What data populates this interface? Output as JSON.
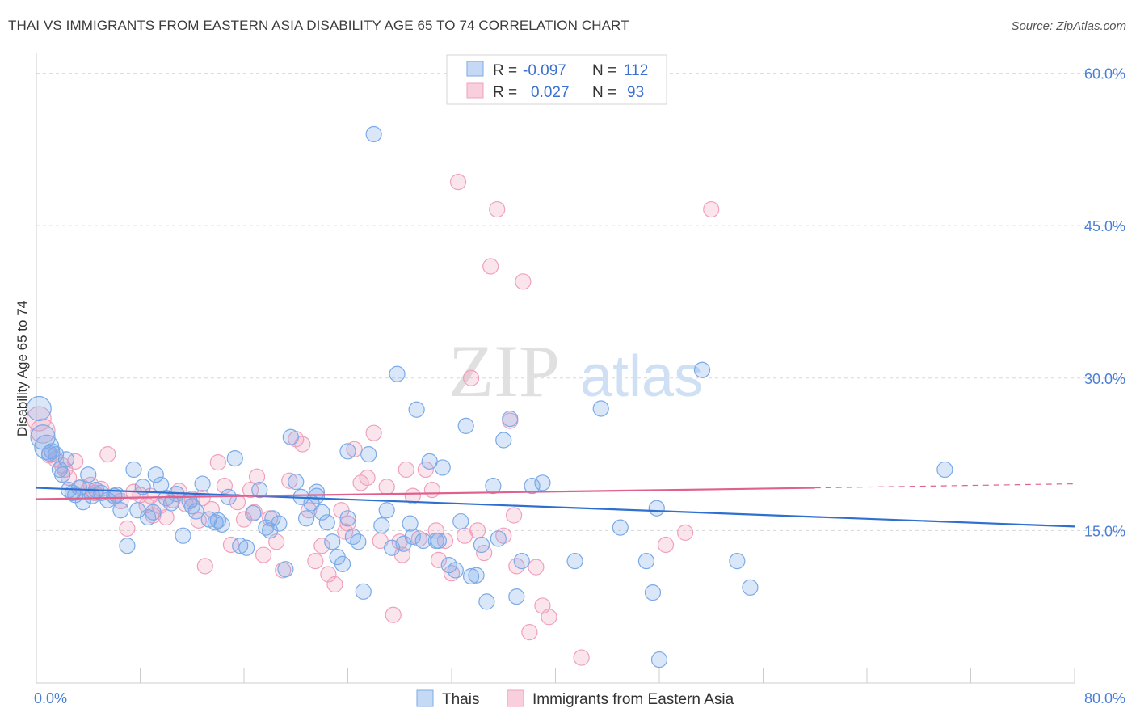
{
  "title": "THAI VS IMMIGRANTS FROM EASTERN ASIA DISABILITY AGE 65 TO 74 CORRELATION CHART",
  "source": "Source: ZipAtlas.com",
  "colors": {
    "thais": "#7aaae8",
    "thais_line": "#2f6fcf",
    "immigrants": "#f0a0bc",
    "immigrants_line": "#e0608e",
    "tick": "#4a7fd4",
    "grid": "#d8d8d8"
  },
  "chart_data": {
    "type": "scatter",
    "ylabel": "Disability Age 65 to 74",
    "xlim": [
      0,
      80
    ],
    "ylim": [
      0,
      61
    ],
    "x_tick_labels": [
      "0.0%",
      "80.0%"
    ],
    "y_ticks": [
      15,
      30,
      45,
      60
    ],
    "y_tick_labels": [
      "15.0%",
      "30.0%",
      "45.0%",
      "60.0%"
    ],
    "legend": {
      "rows": [
        {
          "r_label": "R =",
          "r_value": "-0.097",
          "n_label": "N =",
          "n_value": "112"
        },
        {
          "r_label": "R =",
          "r_value": "0.027",
          "n_label": "N =",
          "n_value": "93"
        }
      ]
    },
    "series": [
      {
        "name": "Thais",
        "trend": {
          "x": [
            0,
            80
          ],
          "y": [
            19.2,
            15.4
          ],
          "dashed_from": null
        },
        "points": [
          [
            0.2,
            27.0
          ],
          [
            0.5,
            24.2
          ],
          [
            0.8,
            23.2
          ],
          [
            1.2,
            22.8
          ],
          [
            1.5,
            22.5
          ],
          [
            1.8,
            21.0
          ],
          [
            2.0,
            20.5
          ],
          [
            2.3,
            22.0
          ],
          [
            2.5,
            19.0
          ],
          [
            3.0,
            18.5
          ],
          [
            3.3,
            19.2
          ],
          [
            3.6,
            17.8
          ],
          [
            4.0,
            20.5
          ],
          [
            4.3,
            18.4
          ],
          [
            4.6,
            19.0
          ],
          [
            5.0,
            18.7
          ],
          [
            5.5,
            18.0
          ],
          [
            6.0,
            18.4
          ],
          [
            6.5,
            17.0
          ],
          [
            7.0,
            13.5
          ],
          [
            7.5,
            21.0
          ],
          [
            7.8,
            17.0
          ],
          [
            8.2,
            19.3
          ],
          [
            8.6,
            16.3
          ],
          [
            9.2,
            20.5
          ],
          [
            9.6,
            19.5
          ],
          [
            10.0,
            18.2
          ],
          [
            10.4,
            17.7
          ],
          [
            10.8,
            18.6
          ],
          [
            11.3,
            14.5
          ],
          [
            11.8,
            17.9
          ],
          [
            12.3,
            16.9
          ],
          [
            12.8,
            19.6
          ],
          [
            13.3,
            16.1
          ],
          [
            13.8,
            15.8
          ],
          [
            14.3,
            15.6
          ],
          [
            14.8,
            18.3
          ],
          [
            15.3,
            22.1
          ],
          [
            15.7,
            13.5
          ],
          [
            16.2,
            13.3
          ],
          [
            16.7,
            16.7
          ],
          [
            17.2,
            19.0
          ],
          [
            17.7,
            15.3
          ],
          [
            18.2,
            16.2
          ],
          [
            18.7,
            15.7
          ],
          [
            19.2,
            11.2
          ],
          [
            19.6,
            24.2
          ],
          [
            20.0,
            19.8
          ],
          [
            20.4,
            18.3
          ],
          [
            20.8,
            16.2
          ],
          [
            21.2,
            17.7
          ],
          [
            21.6,
            18.8
          ],
          [
            22.0,
            16.8
          ],
          [
            22.4,
            15.8
          ],
          [
            22.8,
            13.9
          ],
          [
            23.2,
            12.4
          ],
          [
            23.6,
            11.7
          ],
          [
            24.0,
            22.8
          ],
          [
            24.4,
            14.4
          ],
          [
            24.8,
            13.9
          ],
          [
            25.2,
            9.0
          ],
          [
            25.6,
            22.5
          ],
          [
            26.0,
            54.0
          ],
          [
            26.6,
            15.5
          ],
          [
            27.0,
            17.0
          ],
          [
            27.4,
            13.3
          ],
          [
            27.8,
            30.4
          ],
          [
            28.3,
            13.7
          ],
          [
            28.8,
            15.7
          ],
          [
            29.3,
            26.9
          ],
          [
            29.8,
            14.0
          ],
          [
            30.3,
            21.8
          ],
          [
            30.8,
            14.0
          ],
          [
            31.3,
            21.2
          ],
          [
            31.8,
            11.6
          ],
          [
            32.3,
            11.1
          ],
          [
            32.7,
            15.9
          ],
          [
            33.1,
            25.3
          ],
          [
            33.5,
            10.5
          ],
          [
            33.9,
            10.6
          ],
          [
            34.3,
            13.6
          ],
          [
            34.7,
            8.0
          ],
          [
            35.2,
            19.4
          ],
          [
            35.6,
            14.2
          ],
          [
            36.0,
            23.9
          ],
          [
            36.5,
            26.0
          ],
          [
            37.0,
            8.5
          ],
          [
            37.4,
            12.0
          ],
          [
            38.2,
            19.4
          ],
          [
            39.0,
            19.7
          ],
          [
            41.5,
            12.0
          ],
          [
            43.5,
            27.0
          ],
          [
            45.0,
            15.3
          ],
          [
            47.0,
            12.0
          ],
          [
            47.5,
            8.9
          ],
          [
            47.8,
            17.2
          ],
          [
            48.0,
            2.3
          ],
          [
            51.3,
            30.8
          ],
          [
            54.0,
            12.0
          ],
          [
            55.0,
            9.4
          ],
          [
            70.0,
            21.0
          ],
          [
            1.0,
            22.6
          ],
          [
            2.8,
            18.7
          ],
          [
            6.2,
            18.5
          ],
          [
            9.0,
            16.8
          ],
          [
            12.0,
            17.4
          ],
          [
            21.6,
            18.4
          ],
          [
            29.0,
            14.4
          ],
          [
            14.0,
            16.0
          ],
          [
            24.0,
            16.2
          ],
          [
            18.0,
            15.0
          ],
          [
            31.0,
            14.0
          ]
        ]
      },
      {
        "name": "Immigrants from Eastern Asia",
        "trend": {
          "x": [
            0,
            60,
            80
          ],
          "y": [
            18.1,
            19.2,
            19.6
          ],
          "dashed_from": 60
        },
        "points": [
          [
            0.2,
            26.0
          ],
          [
            0.5,
            24.8
          ],
          [
            1.0,
            22.4
          ],
          [
            1.5,
            22.0
          ],
          [
            2.0,
            21.4
          ],
          [
            2.5,
            20.2
          ],
          [
            3.0,
            21.8
          ],
          [
            3.5,
            19.3
          ],
          [
            4.0,
            19.0
          ],
          [
            4.5,
            18.7
          ],
          [
            5.0,
            19.1
          ],
          [
            5.5,
            22.5
          ],
          [
            6.0,
            18.4
          ],
          [
            6.5,
            17.9
          ],
          [
            7.0,
            15.2
          ],
          [
            7.5,
            18.8
          ],
          [
            8.0,
            18.5
          ],
          [
            8.5,
            17.5
          ],
          [
            9.0,
            16.5
          ],
          [
            9.5,
            17.4
          ],
          [
            10.0,
            16.3
          ],
          [
            10.5,
            18.0
          ],
          [
            11.0,
            18.9
          ],
          [
            11.5,
            17.6
          ],
          [
            12.0,
            18.1
          ],
          [
            12.5,
            16.0
          ],
          [
            13.0,
            11.5
          ],
          [
            13.5,
            17.1
          ],
          [
            14.0,
            21.7
          ],
          [
            14.5,
            19.4
          ],
          [
            15.0,
            13.6
          ],
          [
            15.5,
            17.8
          ],
          [
            16.0,
            16.1
          ],
          [
            16.5,
            19.0
          ],
          [
            17.0,
            20.3
          ],
          [
            17.5,
            12.6
          ],
          [
            18.0,
            16.2
          ],
          [
            18.5,
            13.9
          ],
          [
            19.0,
            11.1
          ],
          [
            19.5,
            19.9
          ],
          [
            20.0,
            24.0
          ],
          [
            20.5,
            23.5
          ],
          [
            21.0,
            17.0
          ],
          [
            21.5,
            12.0
          ],
          [
            22.0,
            13.5
          ],
          [
            22.5,
            10.7
          ],
          [
            23.0,
            9.7
          ],
          [
            23.5,
            17.0
          ],
          [
            24.0,
            15.7
          ],
          [
            24.5,
            23.0
          ],
          [
            25.0,
            19.7
          ],
          [
            25.5,
            20.2
          ],
          [
            26.0,
            24.6
          ],
          [
            26.5,
            14.0
          ],
          [
            27.0,
            19.3
          ],
          [
            27.5,
            6.7
          ],
          [
            28.0,
            13.9
          ],
          [
            28.5,
            21.0
          ],
          [
            29.0,
            18.4
          ],
          [
            29.5,
            14.2
          ],
          [
            30.0,
            21.0
          ],
          [
            30.5,
            19.0
          ],
          [
            31.0,
            12.1
          ],
          [
            31.5,
            14.0
          ],
          [
            32.0,
            10.8
          ],
          [
            32.5,
            49.3
          ],
          [
            33.0,
            14.5
          ],
          [
            33.5,
            30.0
          ],
          [
            34.0,
            15.0
          ],
          [
            34.5,
            12.8
          ],
          [
            35.0,
            41.0
          ],
          [
            35.5,
            46.6
          ],
          [
            36.0,
            14.5
          ],
          [
            36.5,
            25.8
          ],
          [
            37.0,
            11.5
          ],
          [
            37.5,
            39.5
          ],
          [
            38.0,
            5.0
          ],
          [
            38.5,
            11.4
          ],
          [
            39.0,
            7.6
          ],
          [
            39.5,
            6.5
          ],
          [
            42.0,
            2.5
          ],
          [
            48.5,
            13.6
          ],
          [
            50.0,
            14.8
          ],
          [
            52.0,
            46.6
          ],
          [
            2.2,
            21.0
          ],
          [
            4.2,
            19.5
          ],
          [
            8.8,
            18.4
          ],
          [
            12.8,
            18.2
          ],
          [
            16.8,
            16.8
          ],
          [
            23.8,
            14.9
          ],
          [
            28.2,
            12.6
          ],
          [
            30.8,
            15.0
          ],
          [
            36.8,
            16.5
          ]
        ]
      }
    ],
    "watermark": "ZIPatlas"
  },
  "bottom_legend": [
    {
      "label": "Thais"
    },
    {
      "label": "Immigrants from Eastern Asia"
    }
  ]
}
